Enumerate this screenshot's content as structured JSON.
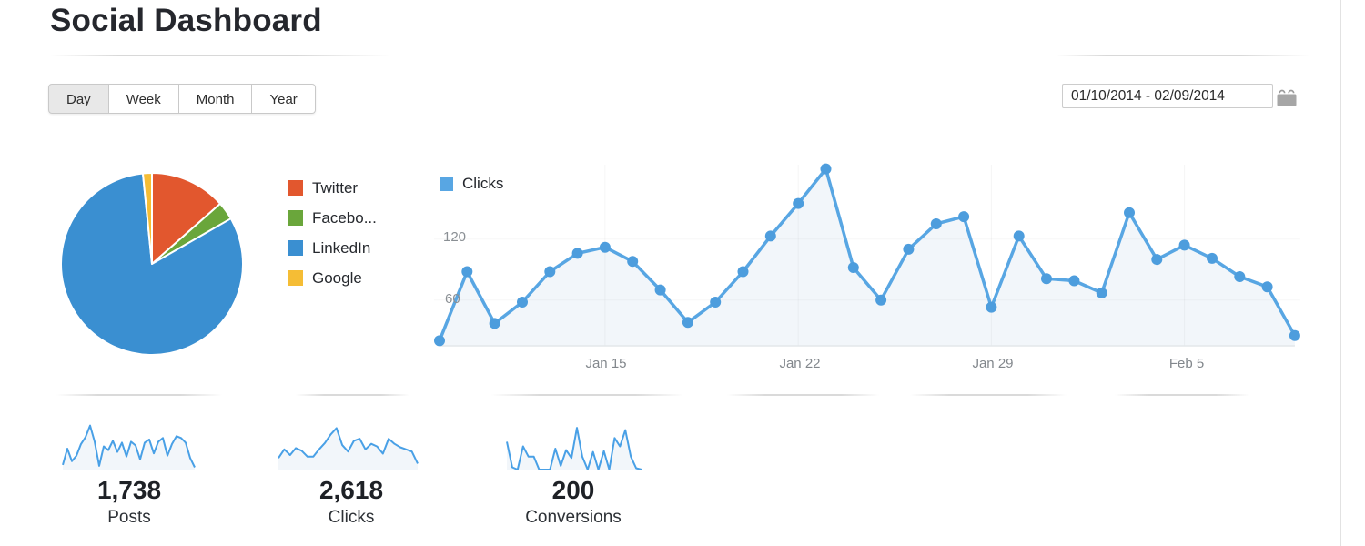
{
  "page": {
    "title": "Social Dashboard"
  },
  "toolbar": {
    "tabs": [
      {
        "label": "Day",
        "selected": true
      },
      {
        "label": "Week",
        "selected": false
      },
      {
        "label": "Month",
        "selected": false
      },
      {
        "label": "Year",
        "selected": false
      }
    ],
    "date_range": "01/10/2014 - 02/09/2014",
    "calendar_icon": "calendar-icon"
  },
  "colors": {
    "spark_line": "#49a0e6",
    "spark_fill": "rgba(125,165,210,0.10)"
  },
  "chart_data": [
    {
      "type": "pie",
      "legend_position": "right",
      "slices": [
        {
          "label": "Twitter",
          "pct": 13.5,
          "color": "#e2572e"
        },
        {
          "label": "Facebo...",
          "pct": 3.2,
          "color": "#6aa63b"
        },
        {
          "label": "LinkedIn",
          "pct": 81.7,
          "color": "#3a8fd1"
        },
        {
          "label": "Google",
          "pct": 1.6,
          "color": "#f5bd35"
        }
      ]
    },
    {
      "type": "line",
      "legend_label": "Clicks",
      "color": "#58a6e3",
      "point_color": "#4d9ddd",
      "area_fill": "rgba(125,165,210,0.10)",
      "y_ticks": [
        60,
        120
      ],
      "y_range": [
        15,
        200
      ],
      "x_tick_labels": [
        "Jan 15",
        "Jan 22",
        "Jan 29",
        "Feb 5"
      ],
      "x_tick_indices": [
        6,
        13,
        20,
        27
      ],
      "values": [
        20,
        88,
        37,
        58,
        88,
        106,
        112,
        98,
        70,
        38,
        58,
        88,
        123,
        155,
        189,
        92,
        60,
        110,
        135,
        142,
        53,
        123,
        81,
        79,
        67,
        146,
        100,
        114,
        101,
        83,
        73,
        25
      ]
    }
  ],
  "stats": [
    {
      "value": "1,738",
      "label": "Posts",
      "spark": [
        10,
        45,
        18,
        30,
        55,
        70,
        95,
        60,
        8,
        50,
        42,
        62,
        38,
        58,
        28,
        60,
        52,
        22,
        58,
        65,
        35,
        60,
        68,
        30,
        55,
        72,
        68,
        58,
        25,
        5
      ]
    },
    {
      "value": "2,618",
      "label": "Clicks",
      "spark": [
        25,
        45,
        32,
        48,
        42,
        28,
        28,
        45,
        60,
        80,
        95,
        55,
        40,
        65,
        70,
        45,
        58,
        52,
        35,
        70,
        58,
        50,
        45,
        40,
        12
      ]
    },
    {
      "value": "200",
      "label": "Conversions",
      "spark": [
        60,
        5,
        0,
        50,
        28,
        28,
        0,
        0,
        0,
        45,
        8,
        42,
        25,
        90,
        28,
        0,
        38,
        0,
        40,
        0,
        68,
        50,
        85,
        28,
        3,
        0
      ]
    }
  ]
}
